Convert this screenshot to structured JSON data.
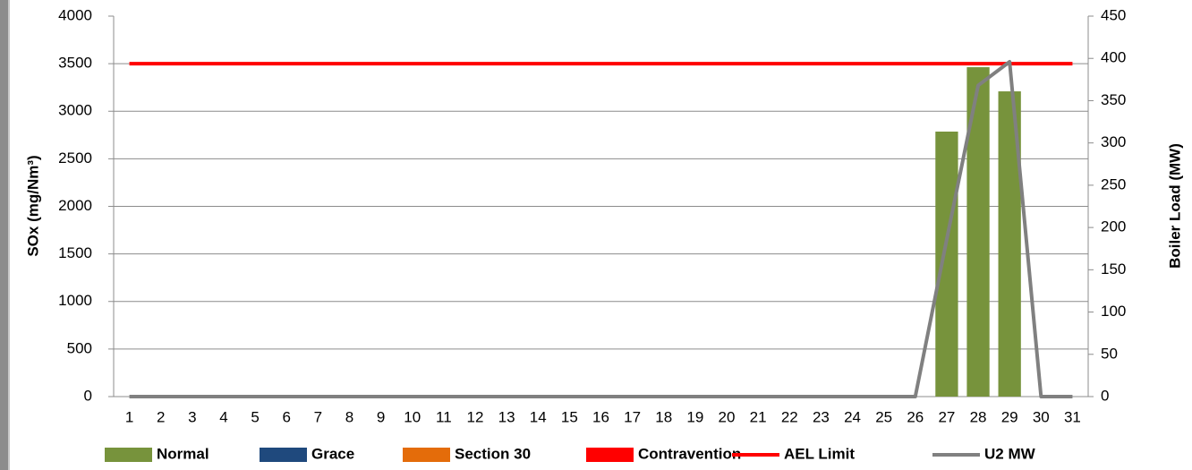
{
  "chart_data": {
    "type": "bar",
    "categories": [
      "1",
      "2",
      "3",
      "4",
      "5",
      "6",
      "7",
      "8",
      "9",
      "10",
      "11",
      "12",
      "13",
      "14",
      "15",
      "16",
      "17",
      "18",
      "19",
      "20",
      "21",
      "22",
      "23",
      "24",
      "25",
      "26",
      "27",
      "28",
      "29",
      "30",
      "31"
    ],
    "y_label": "SOx (mg/Nm³)",
    "y2_label": "Boiler Load (MW)",
    "ylim": [
      0,
      4000
    ],
    "yticks": [
      0,
      500,
      1000,
      1500,
      2000,
      2500,
      3000,
      3500,
      4000
    ],
    "y2lim": [
      0,
      450
    ],
    "y2ticks": [
      0,
      50,
      100,
      150,
      200,
      250,
      300,
      350,
      400,
      450
    ],
    "grid": true,
    "legend": "bottom",
    "series": [
      {
        "name": "Normal",
        "type": "bar",
        "color": "#77933c",
        "values": [
          null,
          null,
          null,
          null,
          null,
          null,
          null,
          null,
          null,
          null,
          null,
          null,
          null,
          null,
          null,
          null,
          null,
          null,
          null,
          null,
          null,
          null,
          null,
          null,
          null,
          null,
          2786,
          3463,
          3209,
          null,
          null
        ]
      },
      {
        "name": "Grace",
        "type": "bar",
        "color": "#1f497d",
        "values": [
          null,
          null,
          null,
          null,
          null,
          null,
          null,
          null,
          null,
          null,
          null,
          null,
          null,
          null,
          null,
          null,
          null,
          null,
          null,
          null,
          null,
          null,
          null,
          null,
          null,
          null,
          null,
          null,
          null,
          null,
          null
        ]
      },
      {
        "name": "Section 30",
        "type": "bar",
        "color": "#e46c0a",
        "values": [
          null,
          null,
          null,
          null,
          null,
          null,
          null,
          null,
          null,
          null,
          null,
          null,
          null,
          null,
          null,
          null,
          null,
          null,
          null,
          null,
          null,
          null,
          null,
          null,
          null,
          null,
          null,
          null,
          null,
          null,
          null
        ]
      },
      {
        "name": "Contravention",
        "type": "bar",
        "color": "#ff0000",
        "values": [
          null,
          null,
          null,
          null,
          null,
          null,
          null,
          null,
          null,
          null,
          null,
          null,
          null,
          null,
          null,
          null,
          null,
          null,
          null,
          null,
          null,
          null,
          null,
          null,
          null,
          null,
          null,
          null,
          null,
          null,
          null
        ]
      },
      {
        "name": "AEL Limit",
        "type": "line",
        "color": "#ff0000",
        "values": [
          3500,
          3500,
          3500,
          3500,
          3500,
          3500,
          3500,
          3500,
          3500,
          3500,
          3500,
          3500,
          3500,
          3500,
          3500,
          3500,
          3500,
          3500,
          3500,
          3500,
          3500,
          3500,
          3500,
          3500,
          3500,
          3500,
          3500,
          3500,
          3500,
          3500,
          3500
        ]
      },
      {
        "name": "U2 MW",
        "type": "line",
        "axis": "y2",
        "color": "#808080",
        "values": [
          0,
          0,
          0,
          0,
          0,
          0,
          0,
          0,
          0,
          0,
          0,
          0,
          0,
          0,
          0,
          0,
          0,
          0,
          0,
          0,
          0,
          0,
          0,
          0,
          0,
          0,
          186,
          368,
          396,
          0,
          0
        ]
      }
    ]
  }
}
